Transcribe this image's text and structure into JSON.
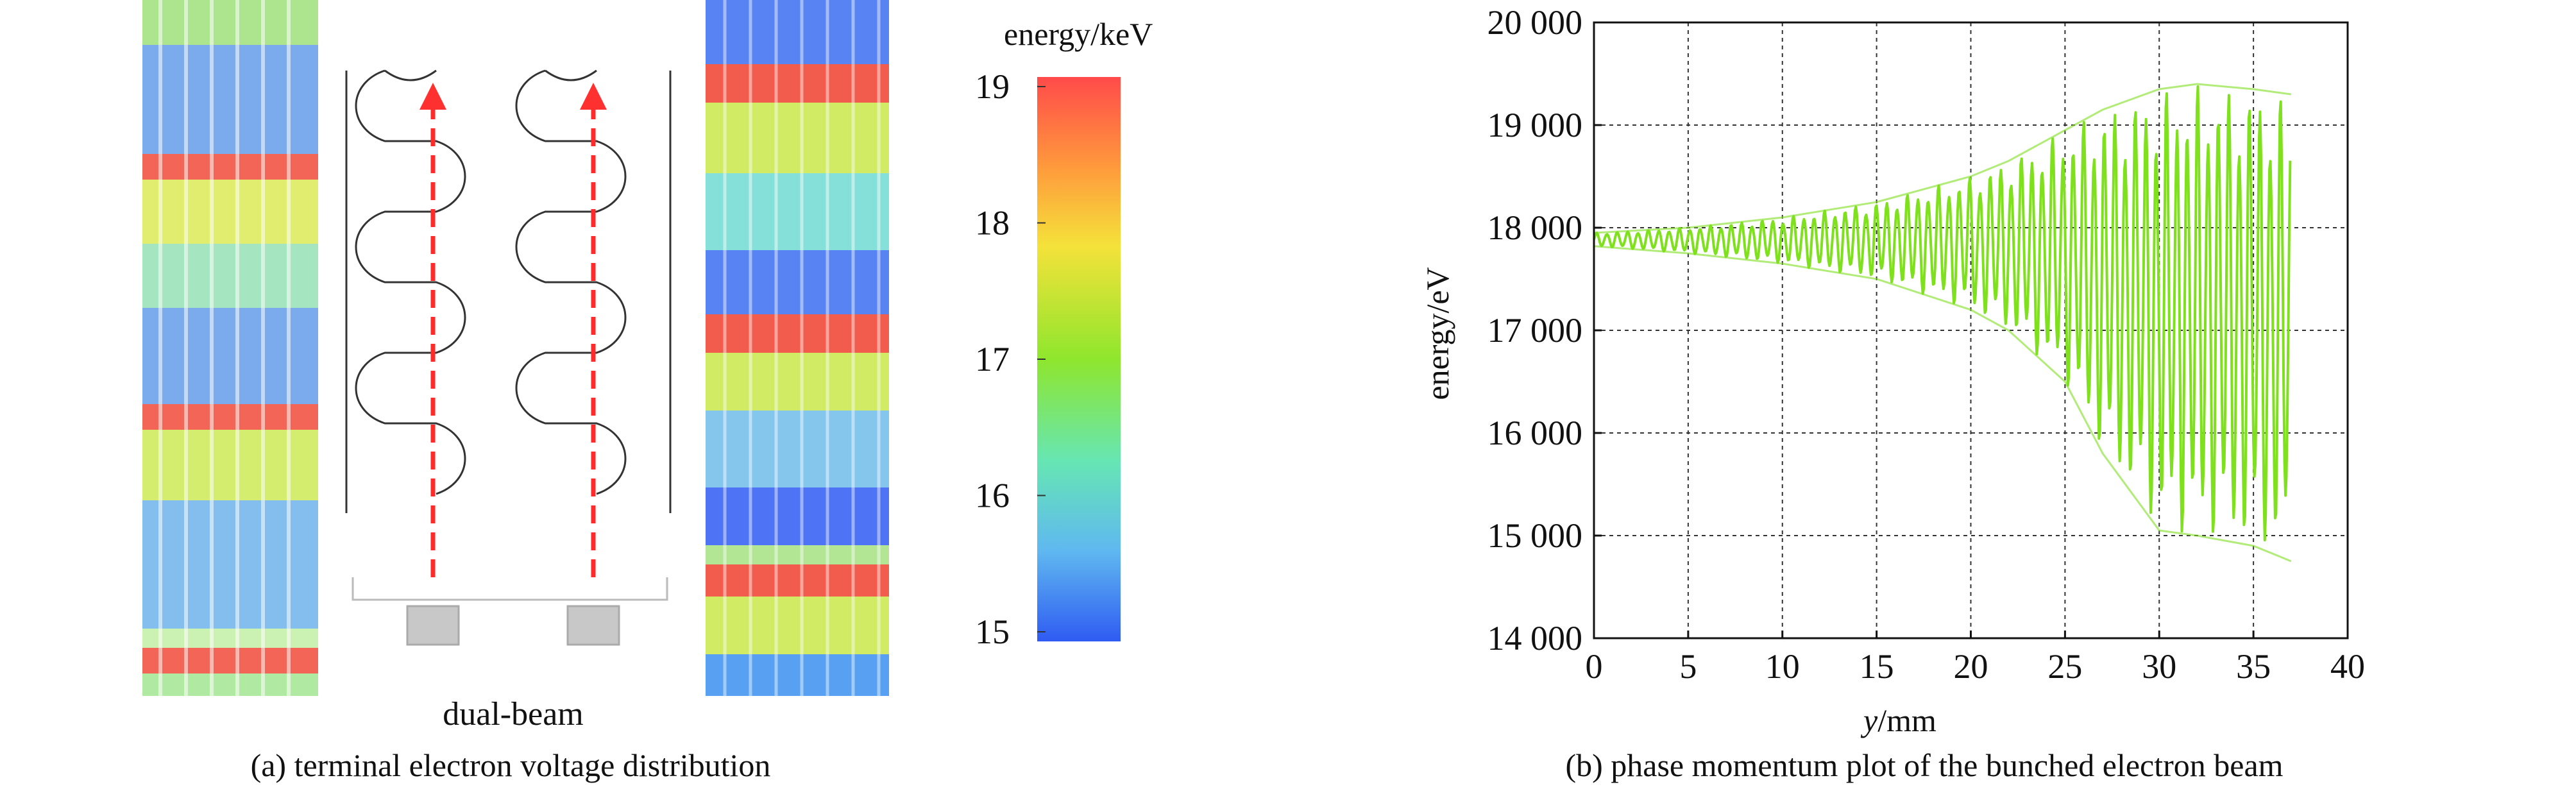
{
  "panel_a": {
    "middle_label": "dual-beam",
    "caption": "(a) terminal electron voltage distribution",
    "colorbar": {
      "title": "energy/keV",
      "ticks": [
        "19",
        "18",
        "17",
        "16",
        "15"
      ],
      "range": [
        15,
        19
      ],
      "colors": [
        "#ff4a4a",
        "#ff9a3c",
        "#f4e23a",
        "#8fe62d",
        "#66e6b3",
        "#5fb8f0",
        "#2f5bf2"
      ]
    }
  },
  "panel_b": {
    "caption_prefix": "(b) phase momentum plot of the bunched electron beam",
    "xlabel_italic": "y",
    "xlabel_unit": "/mm",
    "ylabel": "energy/eV",
    "line_color": "#7fe01e"
  },
  "chart_data": {
    "type": "line",
    "title": "",
    "xlabel": "y/mm",
    "ylabel": "energy/eV",
    "xlim": [
      0,
      40
    ],
    "ylim": [
      14000,
      20000
    ],
    "grid": true,
    "x_ticks": [
      "0",
      "5",
      "10",
      "15",
      "20",
      "25",
      "30",
      "35",
      "40"
    ],
    "y_ticks": [
      "14 000",
      "15 000",
      "16 000",
      "17 000",
      "18 000",
      "19 000",
      "20 000"
    ],
    "series": [
      {
        "name": "energy envelope (upper)",
        "x": [
          0,
          5,
          10,
          15,
          20,
          22,
          25,
          27,
          30,
          32,
          35,
          37
        ],
        "values": [
          17950,
          18000,
          18100,
          18250,
          18500,
          18650,
          18950,
          19150,
          19350,
          19400,
          19350,
          19300
        ]
      },
      {
        "name": "energy envelope (lower)",
        "x": [
          0,
          5,
          10,
          15,
          20,
          22,
          25,
          27,
          30,
          32,
          35,
          37
        ],
        "values": [
          17820,
          17750,
          17650,
          17500,
          17200,
          17000,
          16500,
          15800,
          15050,
          15000,
          14900,
          14750
        ]
      }
    ]
  }
}
